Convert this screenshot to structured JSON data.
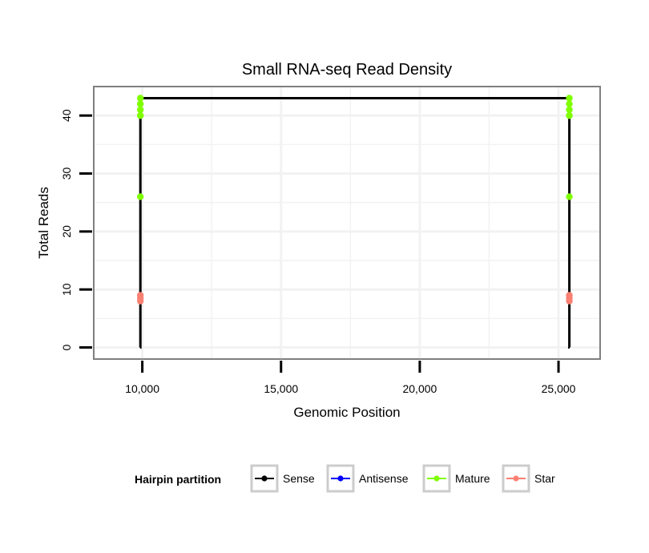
{
  "chart_data": {
    "type": "line",
    "title": "Small RNA-seq Read Density",
    "xlabel": "Genomic Position",
    "ylabel": "Total Reads",
    "xlim": [
      8250,
      26500
    ],
    "ylim": [
      -2,
      45
    ],
    "xticks": [
      10000,
      15000,
      20000,
      25000
    ],
    "xtick_labels": [
      "10,000",
      "15,000",
      "20,000",
      "25,000"
    ],
    "yticks": [
      0,
      10,
      20,
      30,
      40
    ],
    "ytick_labels": [
      "0",
      "10",
      "20",
      "30",
      "40"
    ],
    "grid": true,
    "legend": {
      "title": "Hairpin partition",
      "position": "bottom",
      "entries": [
        {
          "name": "Sense",
          "color": "#000000"
        },
        {
          "name": "Antisense",
          "color": "#0000ff"
        },
        {
          "name": "Mature",
          "color": "#7fff00"
        },
        {
          "name": "Star",
          "color": "#fa8072"
        }
      ]
    },
    "series": [
      {
        "name": "Sense",
        "color": "#000000",
        "x": [
          9920,
          9930,
          9930,
          25390,
          25390,
          25400
        ],
        "values": [
          0,
          0,
          43,
          43,
          0,
          0
        ]
      },
      {
        "name": "Antisense",
        "color": "#0000ff",
        "x": [],
        "values": []
      },
      {
        "name": "Mature",
        "color": "#7fff00",
        "x": [
          9930,
          9930,
          9930,
          9930,
          9930,
          9930,
          25390,
          25390,
          25390,
          25390,
          25390,
          25390
        ],
        "values": [
          43,
          42,
          41,
          40,
          40,
          26,
          43,
          42,
          41,
          40,
          40,
          26
        ]
      },
      {
        "name": "Star",
        "color": "#fa8072",
        "x": [
          9930,
          9930,
          9930,
          25390,
          25390,
          25390
        ],
        "values": [
          9,
          8.5,
          8,
          9,
          8.5,
          8
        ]
      }
    ]
  }
}
